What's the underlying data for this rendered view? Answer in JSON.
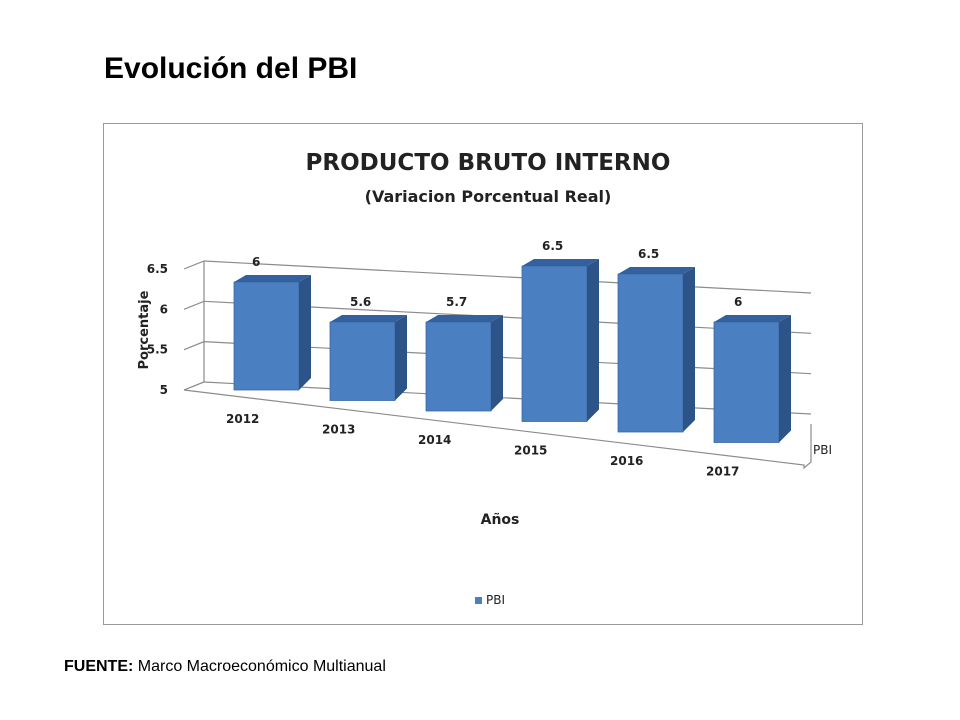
{
  "slide_title": "Evolución del PBI",
  "source": {
    "label": "FUENTE:",
    "text": "Marco Macroeconómico Multianual"
  },
  "colors": {
    "bar_front": "#4a7fc1",
    "bar_side": "#2c5489",
    "bar_top": "#33619f",
    "grid": "#8c8c8c"
  },
  "chart_data": {
    "type": "bar",
    "title": "PRODUCTO BRUTO INTERNO",
    "subtitle": "(Variacion Porcentual Real)",
    "xlabel": "Años",
    "ylabel": "Porcentaje",
    "categories": [
      "2012",
      "2013",
      "2014",
      "2015",
      "2016",
      "2017"
    ],
    "series": [
      {
        "name": "PBI",
        "values": [
          6,
          5.6,
          5.7,
          6.5,
          6.5,
          6
        ]
      }
    ],
    "data_labels": [
      "6",
      "5.6",
      "5.7",
      "6.5",
      "6.5",
      "6"
    ],
    "yticks": [
      "5",
      "5.5",
      "6",
      "6.5"
    ],
    "ylim": [
      5,
      6.5
    ],
    "depth_label": "PBI",
    "legend": {
      "position": "bottom",
      "entries": [
        "PBI"
      ]
    },
    "grid": true
  }
}
